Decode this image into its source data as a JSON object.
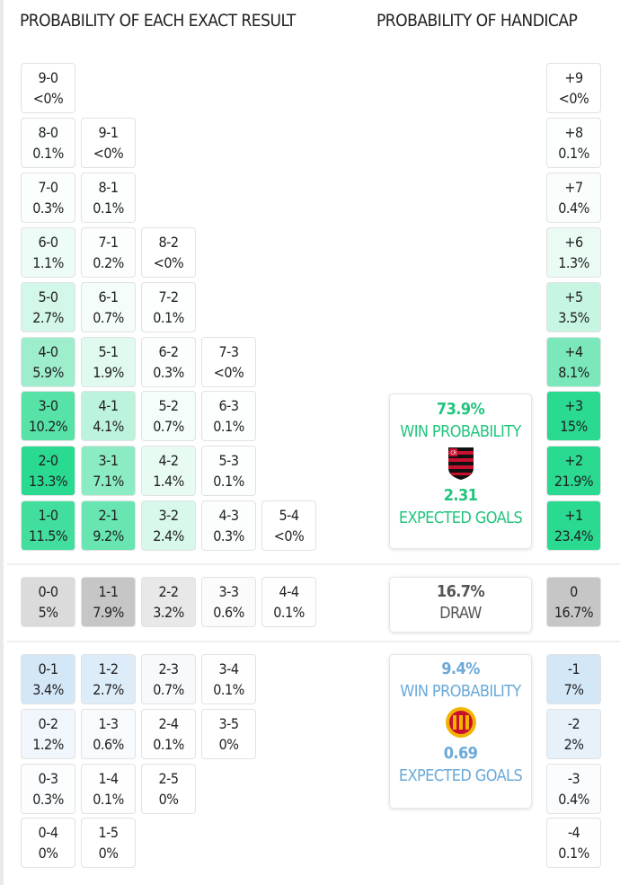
{
  "headers": {
    "exact": "PROBABILITY OF EACH EXACT RESULT",
    "handicap": "PROBABILITY OF HANDICAP"
  },
  "colors": {
    "home": "#1ed88a",
    "home_text": "#22c47d",
    "away": "#8cc0e8",
    "away_text": "#6aa9d8",
    "draw": "#9a9a9a"
  },
  "home_rows": [
    [
      [
        "9-0",
        "<0%"
      ]
    ],
    [
      [
        "8-0",
        "0.1%"
      ],
      [
        "9-1",
        "<0%"
      ]
    ],
    [
      [
        "7-0",
        "0.3%"
      ],
      [
        "8-1",
        "0.1%"
      ]
    ],
    [
      [
        "6-0",
        "1.1%"
      ],
      [
        "7-1",
        "0.2%"
      ],
      [
        "8-2",
        "<0%"
      ]
    ],
    [
      [
        "5-0",
        "2.7%"
      ],
      [
        "6-1",
        "0.7%"
      ],
      [
        "7-2",
        "0.1%"
      ]
    ],
    [
      [
        "4-0",
        "5.9%"
      ],
      [
        "5-1",
        "1.9%"
      ],
      [
        "6-2",
        "0.3%"
      ],
      [
        "7-3",
        "<0%"
      ]
    ],
    [
      [
        "3-0",
        "10.2%"
      ],
      [
        "4-1",
        "4.1%"
      ],
      [
        "5-2",
        "0.7%"
      ],
      [
        "6-3",
        "0.1%"
      ]
    ],
    [
      [
        "2-0",
        "13.3%"
      ],
      [
        "3-1",
        "7.1%"
      ],
      [
        "4-2",
        "1.4%"
      ],
      [
        "5-3",
        "0.1%"
      ]
    ],
    [
      [
        "1-0",
        "11.5%"
      ],
      [
        "2-1",
        "9.2%"
      ],
      [
        "3-2",
        "2.4%"
      ],
      [
        "4-3",
        "0.3%"
      ],
      [
        "5-4",
        "<0%"
      ]
    ]
  ],
  "draw_row": [
    [
      "0-0",
      "5%"
    ],
    [
      "1-1",
      "7.9%"
    ],
    [
      "2-2",
      "3.2%"
    ],
    [
      "3-3",
      "0.6%"
    ],
    [
      "4-4",
      "0.1%"
    ]
  ],
  "away_rows": [
    [
      [
        "0-1",
        "3.4%"
      ],
      [
        "1-2",
        "2.7%"
      ],
      [
        "2-3",
        "0.7%"
      ],
      [
        "3-4",
        "0.1%"
      ]
    ],
    [
      [
        "0-2",
        "1.2%"
      ],
      [
        "1-3",
        "0.6%"
      ],
      [
        "2-4",
        "0.1%"
      ],
      [
        "3-5",
        "0%"
      ]
    ],
    [
      [
        "0-3",
        "0.3%"
      ],
      [
        "1-4",
        "0.1%"
      ],
      [
        "2-5",
        "0%"
      ]
    ],
    [
      [
        "0-4",
        "0%"
      ],
      [
        "1-5",
        "0%"
      ]
    ]
  ],
  "handicap_home": [
    [
      "+9",
      "<0%"
    ],
    [
      "+8",
      "0.1%"
    ],
    [
      "+7",
      "0.4%"
    ],
    [
      "+6",
      "1.3%"
    ],
    [
      "+5",
      "3.5%"
    ],
    [
      "+4",
      "8.1%"
    ],
    [
      "+3",
      "15%"
    ],
    [
      "+2",
      "21.9%"
    ],
    [
      "+1",
      "23.4%"
    ]
  ],
  "handicap_draw": [
    "0",
    "16.7%"
  ],
  "handicap_away": [
    [
      "-1",
      "7%"
    ],
    [
      "-2",
      "2%"
    ],
    [
      "-3",
      "0.4%"
    ],
    [
      "-4",
      "0.1%"
    ]
  ],
  "home_card": {
    "win_pct": "73.9%",
    "win_label": "WIN PROBABILITY",
    "xg": "2.31",
    "xg_label": "EXPECTED GOALS",
    "crest_icon": "flamengo-crest"
  },
  "draw_card": {
    "pct": "16.7%",
    "label": "DRAW"
  },
  "away_card": {
    "win_pct": "9.4%",
    "win_label": "WIN PROBABILITY",
    "xg": "0.69",
    "xg_label": "EXPECTED GOALS",
    "crest_icon": "esperance-crest"
  }
}
